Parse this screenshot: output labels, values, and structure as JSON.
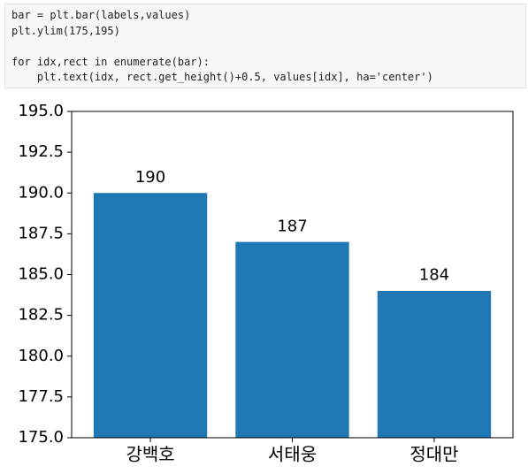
{
  "code": {
    "lines": [
      "bar = plt.bar(labels,values)",
      "plt.ylim(175,195)",
      "for idx,rect in enumerate(bar):",
      "    plt.text(idx, rect.get_height()+0.5, values[idx], ha='center')"
    ]
  },
  "chart_data": {
    "type": "bar",
    "categories": [
      "강백호",
      "서태웅",
      "정대만"
    ],
    "values": [
      190,
      187,
      184
    ],
    "color": "#1f77b4",
    "ylim": [
      175,
      195
    ],
    "yticks": [
      {
        "value": 175,
        "label": "175.0"
      },
      {
        "value": 177.5,
        "label": "177.5"
      },
      {
        "value": 180,
        "label": "180.0"
      },
      {
        "value": 182.5,
        "label": "182.5"
      },
      {
        "value": 185,
        "label": "185.0"
      },
      {
        "value": 187.5,
        "label": "187.5"
      },
      {
        "value": 190,
        "label": "190.0"
      },
      {
        "value": 192.5,
        "label": "192.5"
      },
      {
        "value": 195,
        "label": "195.0"
      }
    ],
    "grid": false
  }
}
